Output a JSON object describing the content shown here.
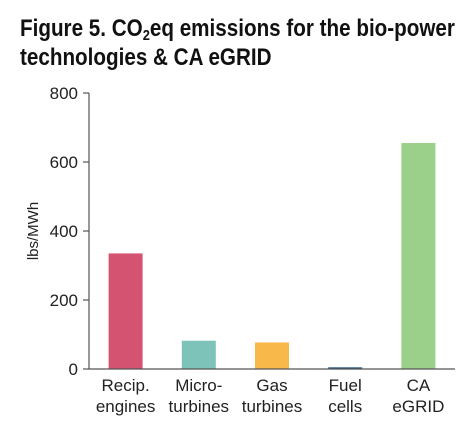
{
  "title": {
    "line1_pre": "Figure 5. CO",
    "line1_sub": "2",
    "line1_post": "eq emissions for the bio-power",
    "line2": "technologies & CA eGRID"
  },
  "chart_data": {
    "type": "bar",
    "title": "Figure 5. CO2eq emissions for the bio-power technologies & CA eGRID",
    "ylabel": "lbs/MWh",
    "xlabel": "",
    "ylim": [
      0,
      800
    ],
    "yticks": [
      0,
      200,
      400,
      600,
      800
    ],
    "grid": false,
    "legend": "none",
    "categories": [
      [
        "Recip.",
        "engines"
      ],
      [
        "Micro-",
        "turbines"
      ],
      [
        "Gas",
        "turbines"
      ],
      [
        "Fuel",
        "cells"
      ],
      [
        "CA",
        "eGRID"
      ]
    ],
    "values": [
      335,
      82,
      77,
      5,
      655
    ],
    "colors": [
      "#d45370",
      "#7dc3b9",
      "#f9b84a",
      "#2f5f8a",
      "#9ad08a"
    ]
  }
}
